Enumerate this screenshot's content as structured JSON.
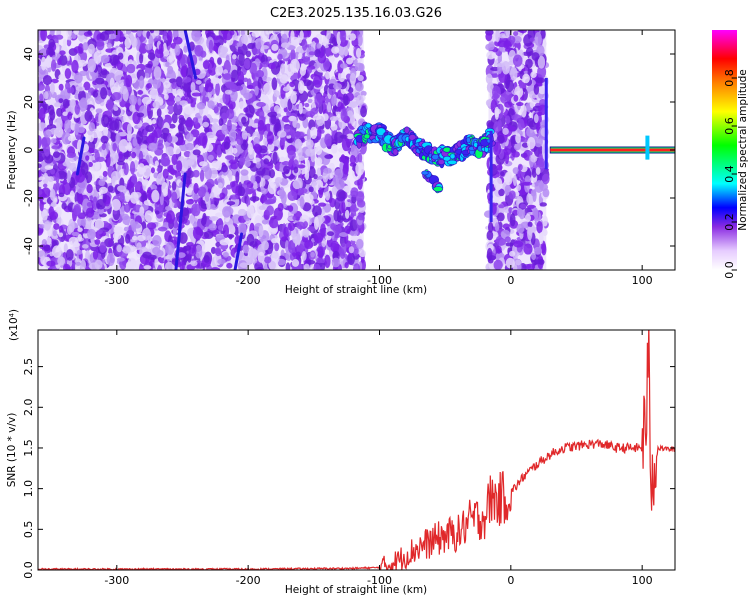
{
  "figure_title": "C2E3.2025.135.16.03.G26",
  "chart_data": [
    {
      "type": "heatmap",
      "title": "C2E3.2025.135.16.03.G26",
      "xlabel": "Height of straight line (km)",
      "ylabel": "Frequency (Hz)",
      "xlim": [
        -360,
        125
      ],
      "ylim": [
        -50,
        50
      ],
      "x_ticks": [
        -300,
        -200,
        -100,
        0,
        100
      ],
      "y_ticks": [
        -40,
        -20,
        0,
        20,
        40
      ],
      "colorbar": {
        "label": "Normalized spectral amplitude",
        "range": [
          0.0,
          1.0
        ],
        "ticks": [
          0.0,
          0.2,
          0.4,
          0.6,
          0.8
        ],
        "colormap": [
          "#ffffff",
          "#8a2be2",
          "#0000ff",
          "#00ffff",
          "#00ff00",
          "#ffff00",
          "#ff8000",
          "#ff0000",
          "#ff00ff"
        ]
      },
      "features": {
        "noise_region_1_x": [
          -360,
          -112
        ],
        "noise_region_2_x": [
          -17,
          27
        ],
        "signal_track": [
          [
            -118,
            4
          ],
          [
            -110,
            8
          ],
          [
            -105,
            6
          ],
          [
            -100,
            8
          ],
          [
            -95,
            4
          ],
          [
            -90,
            1
          ],
          [
            -85,
            3
          ],
          [
            -80,
            6
          ],
          [
            -75,
            4
          ],
          [
            -70,
            1
          ],
          [
            -65,
            0
          ],
          [
            -60,
            -2
          ],
          [
            -55,
            -3
          ],
          [
            -50,
            -2
          ],
          [
            -45,
            -3
          ],
          [
            -40,
            -1
          ],
          [
            -35,
            1
          ],
          [
            -30,
            2
          ],
          [
            -25,
            0
          ],
          [
            -20,
            2
          ],
          [
            -15,
            6
          ]
        ],
        "secondary_track": [
          [
            -70,
            -8
          ],
          [
            -60,
            -12
          ],
          [
            -53,
            -17
          ]
        ],
        "tone_band_x": [
          30,
          125
        ],
        "tone_band_y": 0
      }
    },
    {
      "type": "line",
      "xlabel": "Height of straight line (km)",
      "ylabel": "SNR (10 * v/v)",
      "y_multiplier": "(x10⁴)",
      "xlim": [
        -360,
        125
      ],
      "ylim": [
        0,
        2.95
      ],
      "x_ticks": [
        -300,
        -200,
        -100,
        0,
        100
      ],
      "y_ticks": [
        0.0,
        0.5,
        1.0,
        1.5,
        2.0,
        2.5
      ],
      "series": [
        {
          "color": "#e0282a",
          "x": [
            -360,
            -300,
            -200,
            -120,
            -100,
            -90,
            -80,
            -70,
            -60,
            -50,
            -40,
            -30,
            -20,
            -15,
            -10,
            0,
            10,
            20,
            30,
            40,
            50,
            60,
            70,
            80,
            90,
            100,
            103,
            105,
            107,
            110,
            125
          ],
          "y": [
            0.01,
            0.01,
            0.01,
            0.02,
            0.03,
            0.08,
            0.18,
            0.28,
            0.35,
            0.42,
            0.45,
            0.62,
            0.65,
            0.9,
            0.85,
            0.95,
            1.15,
            1.3,
            1.42,
            1.5,
            1.52,
            1.55,
            1.55,
            1.5,
            1.5,
            1.5,
            1.9,
            2.6,
            1.0,
            1.5,
            1.48
          ]
        }
      ]
    }
  ]
}
